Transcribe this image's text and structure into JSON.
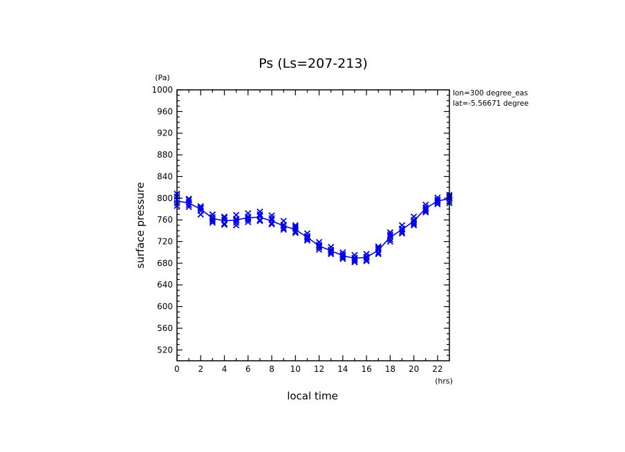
{
  "chart_data": {
    "type": "line",
    "title": "Ps (Ls=207-213)",
    "xlabel": "local time",
    "ylabel": "surface pressure",
    "x_unit": "(hrs)",
    "y_unit": "(Pa)",
    "xlim": [
      0,
      23
    ],
    "ylim": [
      500,
      1000
    ],
    "x_ticks": [
      0,
      2,
      4,
      6,
      8,
      10,
      12,
      14,
      16,
      18,
      20,
      22
    ],
    "y_ticks": [
      520,
      560,
      600,
      640,
      680,
      720,
      760,
      800,
      840,
      880,
      920,
      960,
      1000
    ],
    "annotations": [
      "lon=300 degree_eas",
      "lat=-5.56671 degree"
    ],
    "line_color": "#0000e6",
    "series": [
      {
        "x": [
          0,
          1,
          2,
          3,
          4,
          5,
          6,
          7,
          8,
          9,
          10,
          11,
          12,
          13,
          14,
          15,
          16,
          17,
          18,
          19,
          20,
          21,
          22,
          23
        ],
        "values": [
          795,
          791,
          780,
          763,
          758,
          760,
          764,
          765,
          758,
          749,
          742,
          728,
          712,
          703,
          694,
          689,
          691,
          704,
          728,
          742,
          758,
          781,
          795,
          799
        ],
        "scatter": [
          [
            797,
            791,
            803,
            808,
            786
          ],
          [
            793,
            788,
            799,
            784,
            797
          ],
          [
            781,
            777,
            785,
            770,
            783
          ],
          [
            765,
            758,
            770,
            755,
            761
          ],
          [
            760,
            753,
            766,
            751,
            764
          ],
          [
            762,
            755,
            769,
            750,
            759
          ],
          [
            766,
            760,
            772,
            756,
            763
          ],
          [
            767,
            760,
            775,
            758,
            770
          ],
          [
            760,
            754,
            768,
            752,
            763
          ],
          [
            751,
            745,
            758,
            742,
            749
          ],
          [
            744,
            739,
            750,
            736,
            747
          ],
          [
            730,
            725,
            735,
            722,
            728
          ],
          [
            714,
            709,
            719,
            705,
            712
          ],
          [
            705,
            700,
            710,
            697,
            703
          ],
          [
            696,
            691,
            700,
            688,
            694
          ],
          [
            690,
            685,
            695,
            682,
            688
          ],
          [
            692,
            686,
            697,
            684,
            690
          ],
          [
            705,
            700,
            711,
            697,
            708
          ],
          [
            730,
            724,
            737,
            720,
            733
          ],
          [
            744,
            738,
            750,
            735,
            742
          ],
          [
            760,
            753,
            766,
            750,
            756
          ],
          [
            783,
            777,
            788,
            774,
            780
          ],
          [
            797,
            792,
            801,
            789,
            795
          ],
          [
            800,
            795,
            806,
            791,
            803
          ]
        ]
      }
    ]
  }
}
